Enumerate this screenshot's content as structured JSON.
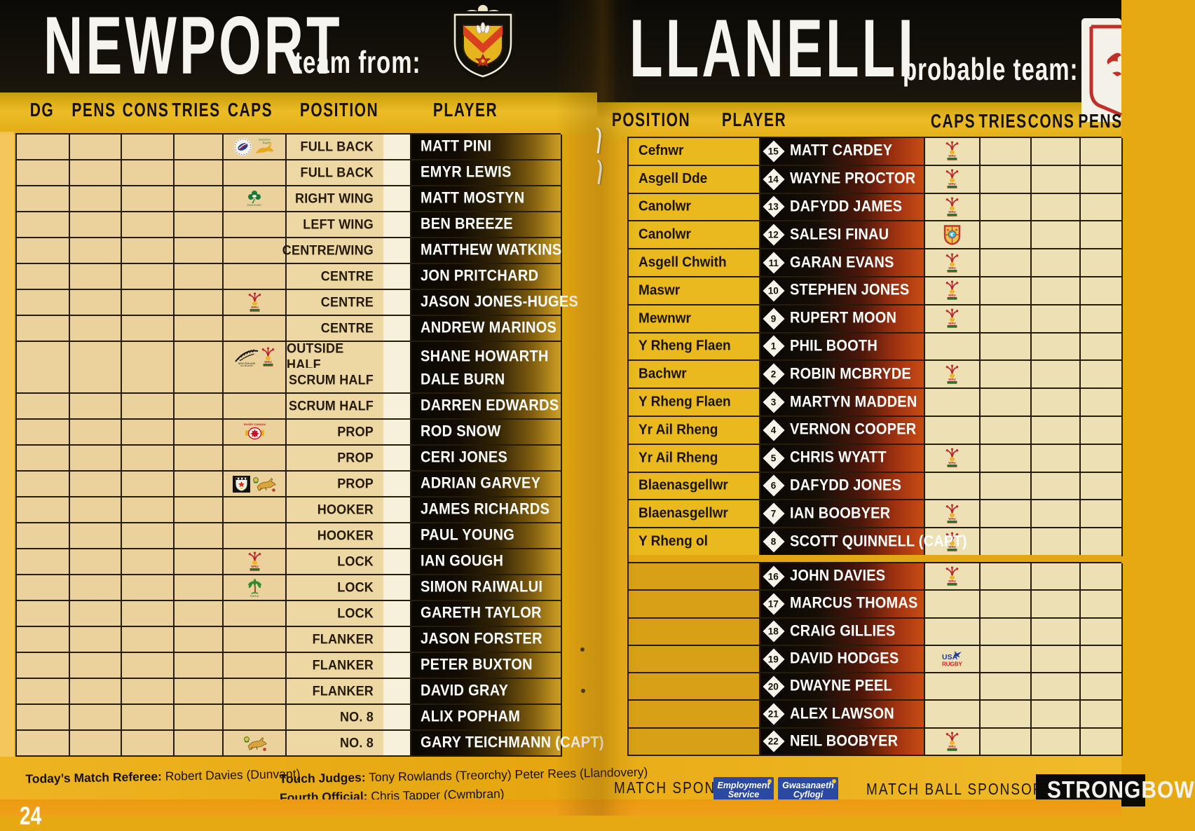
{
  "left": {
    "title": "NEWPORT",
    "subtitle": "team from:",
    "columns": [
      "DG",
      "PENS",
      "CONS",
      "TRIES",
      "CAPS",
      "POSITION",
      "PLAYER"
    ],
    "rows": [
      {
        "position": "FULL BACK",
        "player": "MATT PINI",
        "caps_icons": [
          "italy-rugby",
          "australia-rugby"
        ]
      },
      {
        "position": "FULL BACK",
        "player": "EMYR LEWIS",
        "caps_icons": []
      },
      {
        "position": "RIGHT WING",
        "player": "MATT MOSTYN",
        "caps_icons": [
          "ireland-rugby"
        ]
      },
      {
        "position": "LEFT WING",
        "player": "BEN BREEZE",
        "caps_icons": []
      },
      {
        "position": "CENTRE/WING",
        "player": "MATTHEW WATKINS",
        "caps_icons": []
      },
      {
        "position": "CENTRE",
        "player": "JON PRITCHARD",
        "caps_icons": []
      },
      {
        "position": "CENTRE",
        "player": "JASON JONES-HUGES",
        "caps_icons": [
          "wru-feathers"
        ]
      },
      {
        "position": "CENTRE",
        "player": "ANDREW MARINOS",
        "caps_icons": []
      },
      {
        "position": "OUTSIDE HALF",
        "player": "SHANE HOWARTH",
        "caps_icons": [
          "nz-fern",
          "wru-feathers"
        ]
      },
      {
        "position": "SCRUM HALF",
        "player": "DALE BURN",
        "caps_icons": []
      },
      {
        "position": "SCRUM HALF",
        "player": "DARREN EDWARDS",
        "caps_icons": []
      },
      {
        "position": "PROP",
        "player": "ROD SNOW",
        "caps_icons": [
          "canada-rugby"
        ]
      },
      {
        "position": "PROP",
        "player": "CERI JONES",
        "caps_icons": []
      },
      {
        "position": "PROP",
        "player": "ADRIAN GARVEY",
        "caps_icons": [
          "zimbabwe-rugby",
          "springbok"
        ]
      },
      {
        "position": "HOOKER",
        "player": "JAMES RICHARDS",
        "caps_icons": []
      },
      {
        "position": "HOOKER",
        "player": "PAUL YOUNG",
        "caps_icons": []
      },
      {
        "position": "LOCK",
        "player": "IAN GOUGH",
        "caps_icons": [
          "wru-feathers"
        ]
      },
      {
        "position": "LOCK",
        "player": "SIMON RAIWALUI",
        "caps_icons": [
          "fiji-rugby"
        ]
      },
      {
        "position": "LOCK",
        "player": "GARETH TAYLOR",
        "caps_icons": []
      },
      {
        "position": "FLANKER",
        "player": "JASON FORSTER",
        "caps_icons": []
      },
      {
        "position": "FLANKER",
        "player": "PETER BUXTON",
        "caps_icons": []
      },
      {
        "position": "FLANKER",
        "player": "DAVID GRAY",
        "caps_icons": []
      },
      {
        "position": "NO. 8",
        "player": "ALIX POPHAM",
        "caps_icons": []
      },
      {
        "position": "NO. 8",
        "player": "GARY TEICHMANN (CAPT)",
        "caps_icons": [
          "springbok"
        ]
      }
    ],
    "referee_label": "Today’s Match Referee:",
    "referee": "Robert Davies (Dunvant)",
    "touch_judges_label": "Touch Judges:",
    "touch_judges": "Tony Rowlands (Treorchy) Peter Rees (Llandovery)",
    "fourth_official_label": "Fourth Official:",
    "fourth_official": "Chris Tapper (Cwmbran)",
    "page_number": "24"
  },
  "right": {
    "title": "LLANELLI",
    "subtitle": "probable team:",
    "columns": [
      "POSITION",
      "PLAYER",
      "CAPS",
      "TRIES",
      "CONS",
      "PENS"
    ],
    "rows": [
      {
        "position": "Cefnwr",
        "number": "15",
        "player": "MATT CARDEY",
        "caps_icons": [
          "wru-feathers"
        ]
      },
      {
        "position": "Asgell Dde",
        "number": "14",
        "player": "WAYNE PROCTOR",
        "caps_icons": [
          "wru-feathers"
        ]
      },
      {
        "position": "Canolwr",
        "number": "13",
        "player": "DAFYDD JAMES",
        "caps_icons": [
          "wru-feathers"
        ]
      },
      {
        "position": "Canolwr",
        "number": "12",
        "player": "SALESI FINAU",
        "caps_icons": [
          "tonga-shield"
        ]
      },
      {
        "position": "Asgell Chwith",
        "number": "11",
        "player": "GARAN EVANS",
        "caps_icons": [
          "wru-feathers"
        ]
      },
      {
        "position": "Maswr",
        "number": "10",
        "player": "STEPHEN JONES",
        "caps_icons": [
          "wru-feathers"
        ]
      },
      {
        "position": "Mewnwr",
        "number": "9",
        "player": "RUPERT MOON",
        "caps_icons": [
          "wru-feathers"
        ]
      },
      {
        "position": "Y Rheng Flaen",
        "number": "1",
        "player": "PHIL BOOTH",
        "caps_icons": []
      },
      {
        "position": "Bachwr",
        "number": "2",
        "player": "ROBIN MCBRYDE",
        "caps_icons": [
          "wru-feathers"
        ]
      },
      {
        "position": "Y Rheng Flaen",
        "number": "3",
        "player": "MARTYN MADDEN",
        "caps_icons": []
      },
      {
        "position": "Yr Ail Rheng",
        "number": "4",
        "player": "VERNON COOPER",
        "caps_icons": []
      },
      {
        "position": "Yr Ail Rheng",
        "number": "5",
        "player": "CHRIS WYATT",
        "caps_icons": [
          "wru-feathers"
        ]
      },
      {
        "position": "Blaenasgellwr",
        "number": "6",
        "player": "DAFYDD JONES",
        "caps_icons": []
      },
      {
        "position": "Blaenasgellwr",
        "number": "7",
        "player": "IAN BOOBYER",
        "caps_icons": [
          "wru-feathers"
        ]
      },
      {
        "position": "Y Rheng ol",
        "number": "8",
        "player": "SCOTT QUINNELL (CAPT)",
        "caps_icons": [
          "wru-feathers"
        ]
      }
    ],
    "subs_rows": [
      {
        "position": "",
        "number": "16",
        "player": "JOHN DAVIES",
        "caps_icons": [
          "wru-feathers"
        ]
      },
      {
        "position": "",
        "number": "17",
        "player": "MARCUS THOMAS",
        "caps_icons": []
      },
      {
        "position": "",
        "number": "18",
        "player": "CRAIG GILLIES",
        "caps_icons": []
      },
      {
        "position": "",
        "number": "19",
        "player": "DAVID HODGES",
        "caps_icons": [
          "usa-rugby"
        ]
      },
      {
        "position": "",
        "number": "20",
        "player": "DWAYNE PEEL",
        "caps_icons": []
      },
      {
        "position": "",
        "number": "21",
        "player": "ALEX LAWSON",
        "caps_icons": []
      },
      {
        "position": "",
        "number": "22",
        "player": "NEIL BOOBYER",
        "caps_icons": [
          "wru-feathers"
        ]
      }
    ],
    "match_sponsor_label": "MATCH SPONSOR",
    "sponsors": [
      {
        "name": "Employment Service",
        "lines": [
          "Employment",
          "Service"
        ]
      },
      {
        "name": "Gwasanaeth Cyflogi",
        "lines": [
          "Gwasanaeth",
          "Cyflogi"
        ]
      }
    ],
    "match_ball_sponsor_label": "MATCH BALL SPONSOR",
    "ball_sponsor": "STRONGBOW"
  },
  "colors": {
    "page_gold": "#e6a912",
    "band_black": "#14100a",
    "cell_beige": "#ebd29c",
    "llanelli_gold": "#e9b91d",
    "player_band_gold": "#c3961f",
    "player_band_red": "#c94b15",
    "sponsor_blue": "#2a4aa2",
    "wru_red": "#b8222a"
  }
}
